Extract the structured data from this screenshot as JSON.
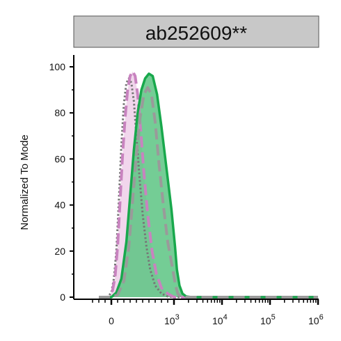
{
  "chart_data": {
    "type": "area",
    "title": "ab252609**",
    "xlabel": "",
    "ylabel": "Normalized To Mode",
    "x_scale": "biexponential",
    "xlim": [
      -300,
      1000000
    ],
    "ylim": [
      0,
      100
    ],
    "y_ticks": [
      0,
      20,
      40,
      60,
      80,
      100
    ],
    "x_ticks": [
      {
        "value": 0,
        "label": "0"
      },
      {
        "value": 1000,
        "base": "10",
        "exp": "3"
      },
      {
        "value": 10000,
        "base": "10",
        "exp": "4"
      },
      {
        "value": 100000,
        "base": "10",
        "exp": "5"
      },
      {
        "value": 1000000,
        "base": "10",
        "exp": "6"
      }
    ],
    "grid": false,
    "legend": "none",
    "series": [
      {
        "style": "dotted",
        "color": "#777777",
        "fill": "none",
        "points": [
          [
            -200,
            0
          ],
          [
            -60,
            0
          ],
          [
            0,
            2
          ],
          [
            40,
            8
          ],
          [
            80,
            20
          ],
          [
            120,
            42
          ],
          [
            160,
            66
          ],
          [
            200,
            84
          ],
          [
            240,
            93
          ],
          [
            280,
            95
          ],
          [
            320,
            93
          ],
          [
            360,
            85
          ],
          [
            400,
            70
          ],
          [
            450,
            52
          ],
          [
            500,
            36
          ],
          [
            560,
            22
          ],
          [
            620,
            12
          ],
          [
            700,
            5
          ],
          [
            800,
            1.5
          ],
          [
            900,
            0.3
          ],
          [
            1000,
            0
          ],
          [
            1000000,
            0
          ]
        ]
      },
      {
        "style": "dashed",
        "color": "#c883bf",
        "fill": "#f0d2ea",
        "points": [
          [
            -200,
            0
          ],
          [
            -40,
            0
          ],
          [
            20,
            3
          ],
          [
            60,
            9
          ],
          [
            100,
            22
          ],
          [
            140,
            42
          ],
          [
            180,
            62
          ],
          [
            220,
            78
          ],
          [
            260,
            90
          ],
          [
            300,
            96
          ],
          [
            340,
            98
          ],
          [
            380,
            96
          ],
          [
            420,
            88
          ],
          [
            470,
            72
          ],
          [
            520,
            54
          ],
          [
            580,
            36
          ],
          [
            650,
            20
          ],
          [
            720,
            10
          ],
          [
            800,
            4
          ],
          [
            900,
            1.5
          ],
          [
            1000,
            0
          ],
          [
            1000000,
            0
          ]
        ]
      },
      {
        "style": "solid",
        "color": "#18a84c",
        "fill": "#5cc482",
        "points": [
          [
            -200,
            0
          ],
          [
            0,
            0
          ],
          [
            80,
            2
          ],
          [
            160,
            8
          ],
          [
            240,
            24
          ],
          [
            300,
            44
          ],
          [
            360,
            64
          ],
          [
            420,
            80
          ],
          [
            480,
            90
          ],
          [
            540,
            95
          ],
          [
            600,
            97
          ],
          [
            660,
            96
          ],
          [
            730,
            88
          ],
          [
            800,
            74
          ],
          [
            880,
            56
          ],
          [
            960,
            38
          ],
          [
            1050,
            22
          ],
          [
            1150,
            12
          ],
          [
            1300,
            5
          ],
          [
            1500,
            1.5
          ],
          [
            1800,
            0.3
          ],
          [
            2300,
            0
          ],
          [
            1000000,
            0
          ]
        ]
      },
      {
        "style": "dashed",
        "color": "#9a9a9a",
        "fill": "none",
        "points": [
          [
            -200,
            0
          ],
          [
            0,
            0
          ],
          [
            100,
            1
          ],
          [
            200,
            7
          ],
          [
            280,
            22
          ],
          [
            340,
            42
          ],
          [
            400,
            62
          ],
          [
            460,
            78
          ],
          [
            520,
            88
          ],
          [
            580,
            91
          ],
          [
            640,
            88
          ],
          [
            700,
            76
          ],
          [
            760,
            58
          ],
          [
            830,
            40
          ],
          [
            900,
            24
          ],
          [
            980,
            12
          ],
          [
            1080,
            5
          ],
          [
            1200,
            1.5
          ],
          [
            1400,
            0
          ],
          [
            1000000,
            0
          ]
        ]
      }
    ]
  }
}
